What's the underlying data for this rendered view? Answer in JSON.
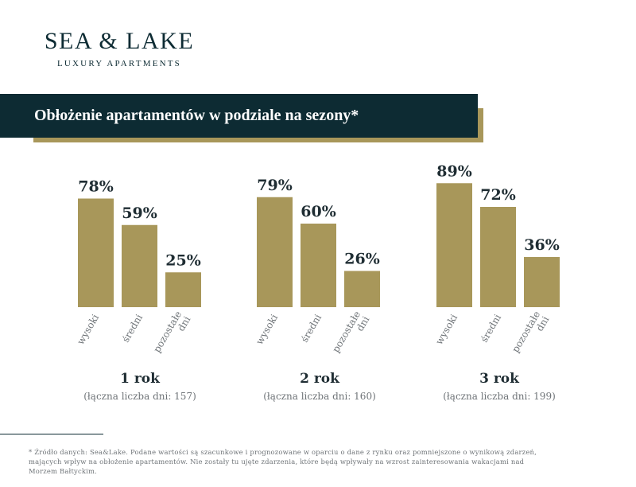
{
  "logo": {
    "title": "SEA & LAKE",
    "subtitle": "LUXURY APARTMENTS"
  },
  "banner": {
    "title": "Obłożenie apartamentów w podziale na sezony*"
  },
  "colors": {
    "navy": "#0d2b33",
    "gold": "#a8975a",
    "text_dark": "#1f2d33",
    "text_gray": "#6f7478"
  },
  "chart_data": {
    "type": "bar",
    "ylim": [
      0,
      100
    ],
    "grid": false,
    "value_suffix": "%",
    "groups": [
      {
        "title": "1 rok",
        "subtitle": "(łączna liczba dni: 157)",
        "categories": [
          "wysoki",
          "średni",
          "pozostałe dni"
        ],
        "values": [
          78,
          59,
          25
        ]
      },
      {
        "title": "2 rok",
        "subtitle": "(łączna liczba dni: 160)",
        "categories": [
          "wysoki",
          "średni",
          "pozostałe dni"
        ],
        "values": [
          79,
          60,
          26
        ]
      },
      {
        "title": "3 rok",
        "subtitle": "(łączna liczba dni: 199)",
        "categories": [
          "wysoki",
          "średni",
          "pozostałe dni"
        ],
        "values": [
          89,
          72,
          36
        ]
      }
    ]
  },
  "footnote": {
    "text": "* Źródło danych: Sea&Lake. Podane wartości są szacunkowe i prognozowane w oparciu o dane z rynku oraz pomniejszone o wynikową zdarzeń, mających wpływ na obłożenie apartamentów. Nie zostały tu ujęte zdarzenia, które będą wpływały na wzrost zainteresowania wakacjami nad Morzem Bałtyckim."
  }
}
